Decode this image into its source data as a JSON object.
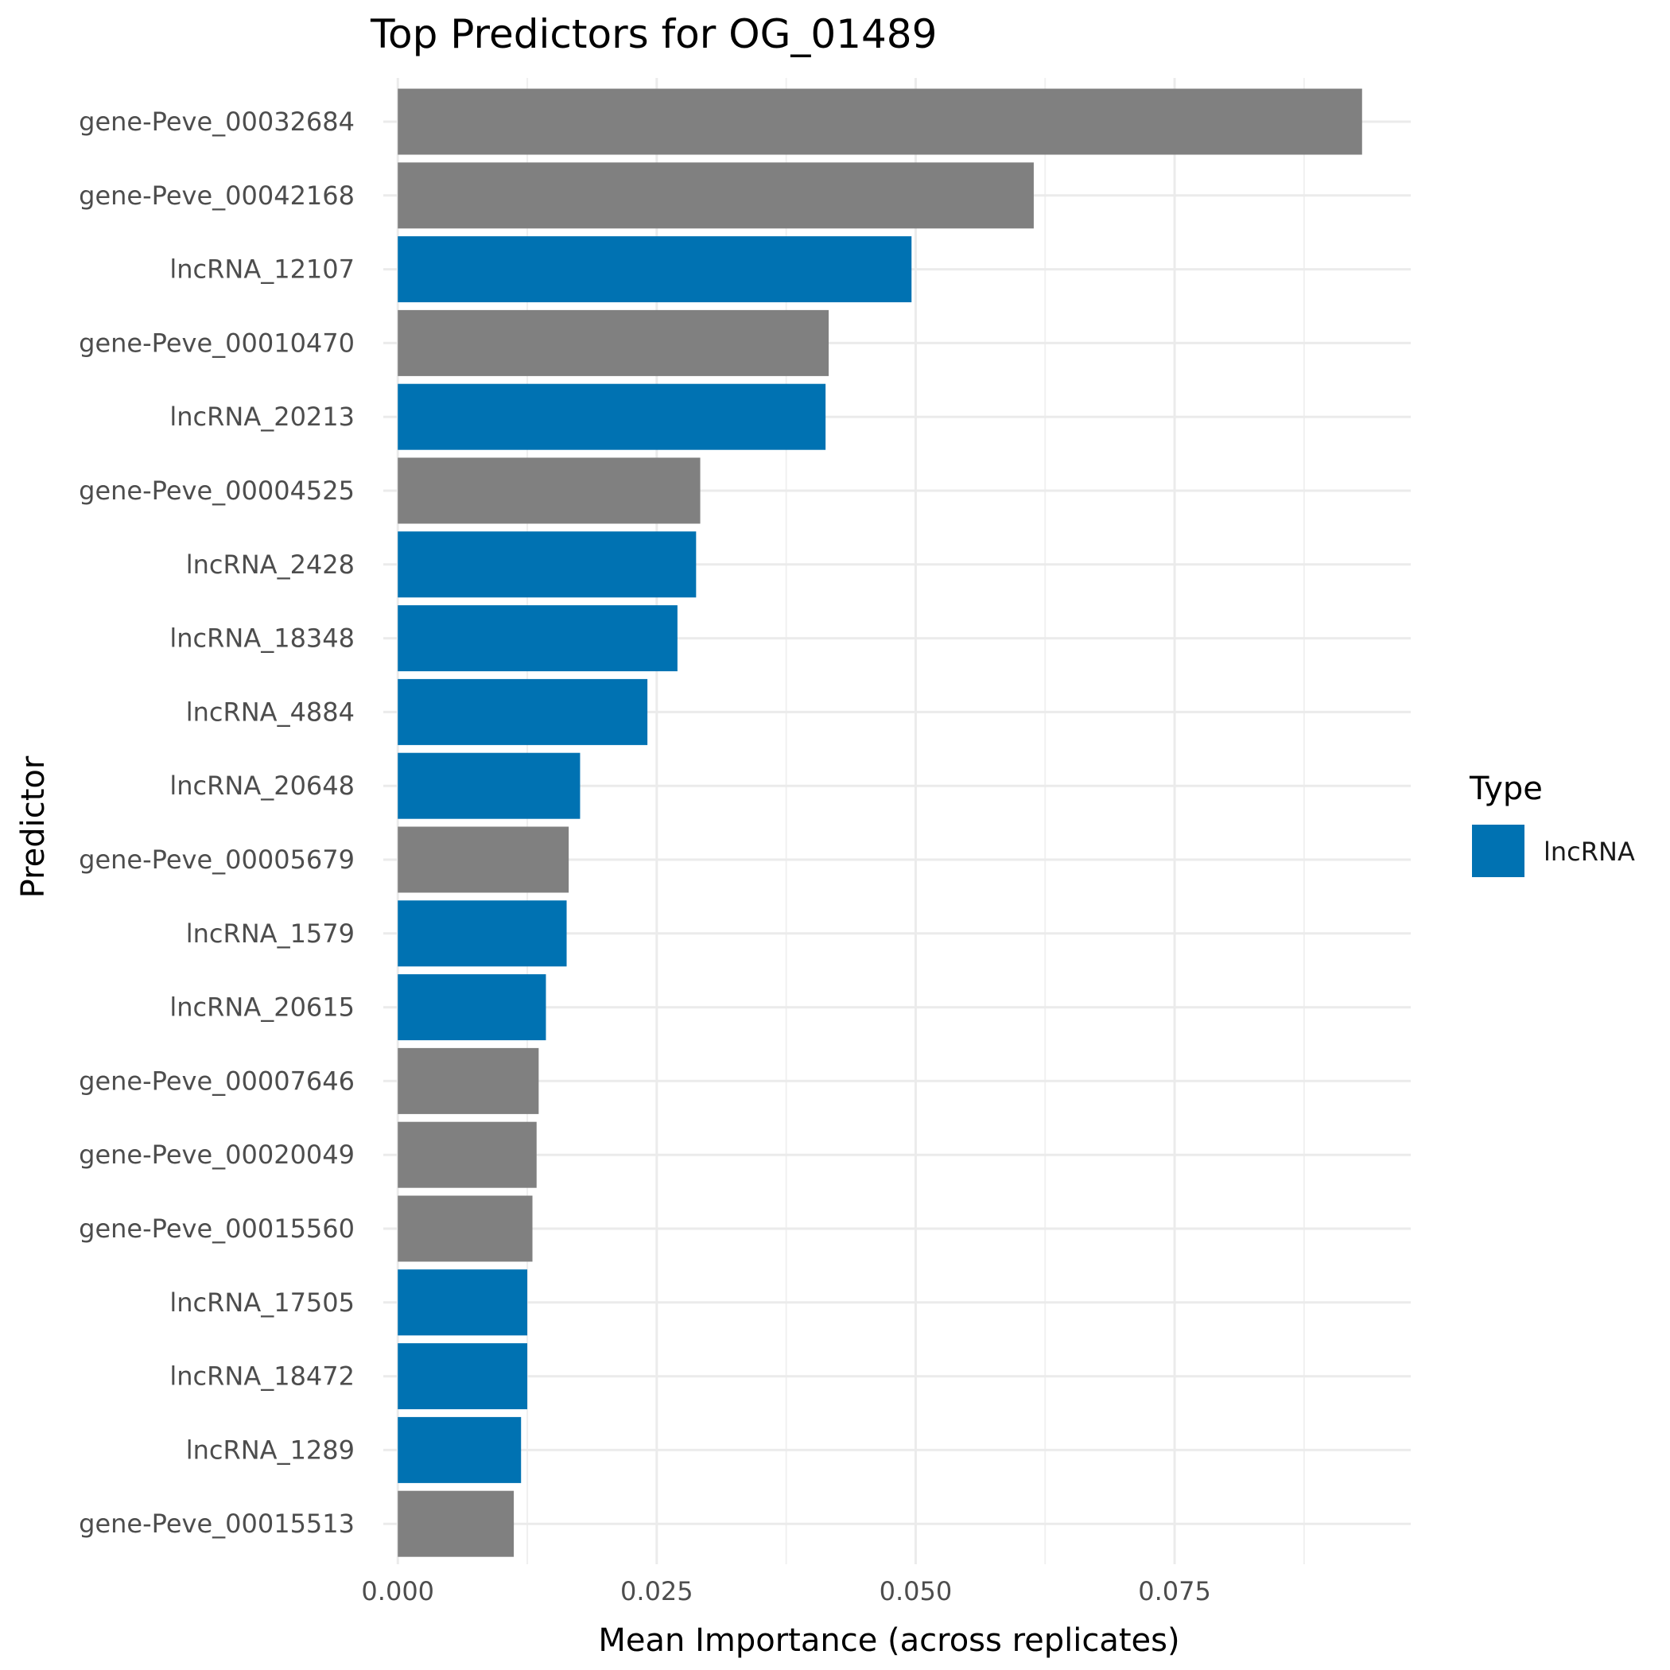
{
  "chart_data": {
    "type": "bar",
    "orientation": "horizontal",
    "title": "Top Predictors for OG_01489",
    "xlabel": "Mean Importance (across replicates)",
    "ylabel": "Predictor",
    "xlim": [
      -0.0014,
      0.0978
    ],
    "xticks": [
      "0.000",
      "0.025",
      "0.050",
      "0.075"
    ],
    "xtick_values": [
      0,
      0.025,
      0.05,
      0.075
    ],
    "grid": true,
    "legend": {
      "title": "Type",
      "position": "right",
      "entries": [
        {
          "label": "lncRNA",
          "color": "#0072B2"
        }
      ]
    },
    "colors": {
      "lncRNA": "#0072B2",
      "gene": "#808080"
    },
    "bars": [
      {
        "label": "gene-Peve_00032684",
        "value": 0.0931,
        "type": "gene"
      },
      {
        "label": "gene-Peve_00042168",
        "value": 0.0614,
        "type": "gene"
      },
      {
        "label": "lncRNA_12107",
        "value": 0.0496,
        "type": "lncRNA"
      },
      {
        "label": "gene-Peve_00010470",
        "value": 0.0416,
        "type": "gene"
      },
      {
        "label": "lncRNA_20213",
        "value": 0.0413,
        "type": "lncRNA"
      },
      {
        "label": "gene-Peve_00004525",
        "value": 0.0292,
        "type": "gene"
      },
      {
        "label": "lncRNA_2428",
        "value": 0.0288,
        "type": "lncRNA"
      },
      {
        "label": "lncRNA_18348",
        "value": 0.027,
        "type": "lncRNA"
      },
      {
        "label": "lncRNA_4884",
        "value": 0.0241,
        "type": "lncRNA"
      },
      {
        "label": "lncRNA_20648",
        "value": 0.0176,
        "type": "lncRNA"
      },
      {
        "label": "gene-Peve_00005679",
        "value": 0.0165,
        "type": "gene"
      },
      {
        "label": "lncRNA_1579",
        "value": 0.0163,
        "type": "lncRNA"
      },
      {
        "label": "lncRNA_20615",
        "value": 0.0143,
        "type": "lncRNA"
      },
      {
        "label": "gene-Peve_00007646",
        "value": 0.0136,
        "type": "gene"
      },
      {
        "label": "gene-Peve_00020049",
        "value": 0.0134,
        "type": "gene"
      },
      {
        "label": "gene-Peve_00015560",
        "value": 0.013,
        "type": "gene"
      },
      {
        "label": "lncRNA_17505",
        "value": 0.0125,
        "type": "lncRNA"
      },
      {
        "label": "lncRNA_18472",
        "value": 0.0125,
        "type": "lncRNA"
      },
      {
        "label": "lncRNA_1289",
        "value": 0.0119,
        "type": "lncRNA"
      },
      {
        "label": "gene-Peve_00015513",
        "value": 0.0112,
        "type": "gene"
      }
    ]
  }
}
